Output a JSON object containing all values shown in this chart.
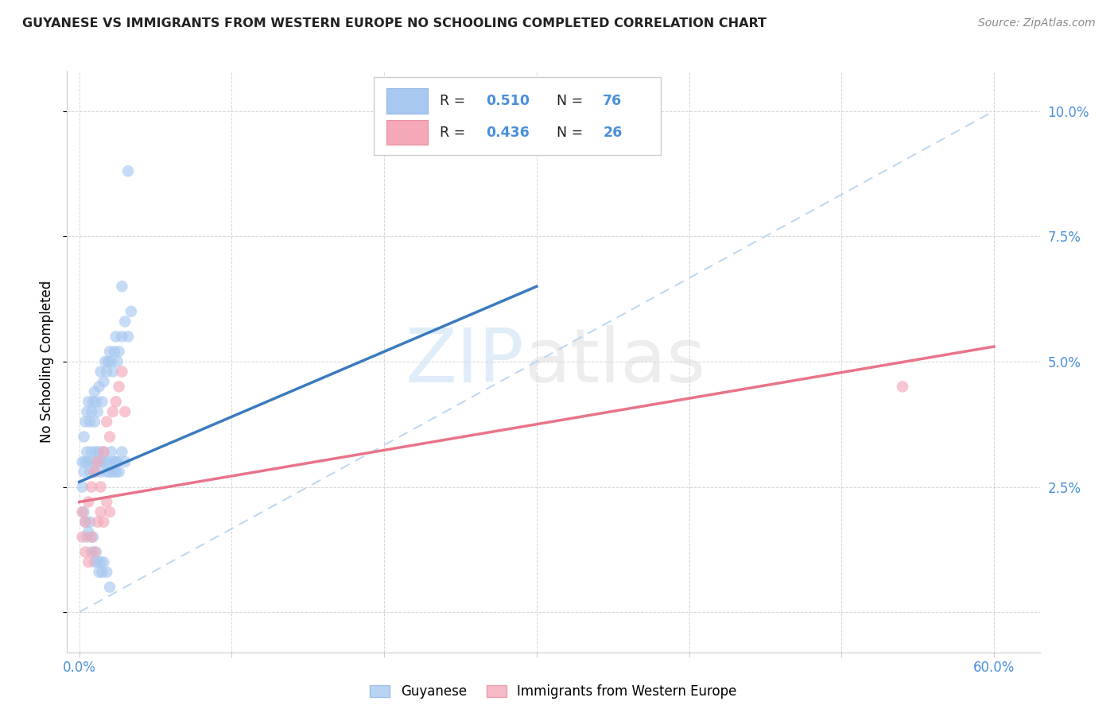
{
  "title": "GUYANESE VS IMMIGRANTS FROM WESTERN EUROPE NO SCHOOLING COMPLETED CORRELATION CHART",
  "source": "Source: ZipAtlas.com",
  "ylabel": "No Schooling Completed",
  "xlim": [
    -0.008,
    0.63
  ],
  "ylim": [
    -0.008,
    0.108
  ],
  "xticks": [
    0.0,
    0.1,
    0.2,
    0.3,
    0.4,
    0.5,
    0.6
  ],
  "xticklabels": [
    "0.0%",
    "",
    "",
    "",
    "",
    "",
    "60.0%"
  ],
  "yticks_right": [
    0.0,
    0.025,
    0.05,
    0.075,
    0.1
  ],
  "yticklabels_right": [
    "",
    "2.5%",
    "5.0%",
    "7.5%",
    "10.0%"
  ],
  "guyanese_color": "#a8c8f0",
  "immigrants_color": "#f4a8b8",
  "blue_line_color": "#3a7abf",
  "pink_line_color": "#e8748a",
  "diag_line_color": "#b8d4f0",
  "tick_color": "#4a90d9",
  "guyanese_x": [
    0.002,
    0.003,
    0.004,
    0.005,
    0.006,
    0.007,
    0.008,
    0.009,
    0.01,
    0.01,
    0.011,
    0.012,
    0.013,
    0.014,
    0.015,
    0.016,
    0.017,
    0.018,
    0.019,
    0.02,
    0.021,
    0.022,
    0.023,
    0.024,
    0.025,
    0.026,
    0.028,
    0.03,
    0.032,
    0.034,
    0.002,
    0.003,
    0.004,
    0.005,
    0.006,
    0.007,
    0.008,
    0.009,
    0.01,
    0.011,
    0.012,
    0.013,
    0.014,
    0.015,
    0.016,
    0.017,
    0.018,
    0.019,
    0.02,
    0.021,
    0.022,
    0.023,
    0.024,
    0.025,
    0.026,
    0.028,
    0.03,
    0.003,
    0.004,
    0.005,
    0.006,
    0.007,
    0.008,
    0.009,
    0.01,
    0.011,
    0.012,
    0.013,
    0.014,
    0.015,
    0.016,
    0.018,
    0.02,
    0.024,
    0.028,
    0.032
  ],
  "guyanese_y": [
    0.03,
    0.035,
    0.038,
    0.04,
    0.042,
    0.038,
    0.04,
    0.042,
    0.038,
    0.044,
    0.042,
    0.04,
    0.045,
    0.048,
    0.042,
    0.046,
    0.05,
    0.048,
    0.05,
    0.052,
    0.05,
    0.048,
    0.052,
    0.055,
    0.05,
    0.052,
    0.055,
    0.058,
    0.055,
    0.06,
    0.025,
    0.028,
    0.03,
    0.032,
    0.03,
    0.028,
    0.032,
    0.03,
    0.028,
    0.032,
    0.03,
    0.032,
    0.028,
    0.03,
    0.032,
    0.03,
    0.028,
    0.03,
    0.028,
    0.032,
    0.028,
    0.03,
    0.028,
    0.03,
    0.028,
    0.032,
    0.03,
    0.02,
    0.018,
    0.015,
    0.016,
    0.018,
    0.012,
    0.015,
    0.01,
    0.012,
    0.01,
    0.008,
    0.01,
    0.008,
    0.01,
    0.008,
    0.005,
    0.03,
    0.065,
    0.088
  ],
  "immigrants_x": [
    0.002,
    0.004,
    0.006,
    0.008,
    0.01,
    0.012,
    0.014,
    0.016,
    0.018,
    0.02,
    0.022,
    0.024,
    0.026,
    0.028,
    0.03,
    0.002,
    0.004,
    0.006,
    0.008,
    0.01,
    0.012,
    0.014,
    0.016,
    0.018,
    0.02,
    0.54
  ],
  "immigrants_y": [
    0.02,
    0.018,
    0.022,
    0.025,
    0.028,
    0.03,
    0.025,
    0.032,
    0.038,
    0.035,
    0.04,
    0.042,
    0.045,
    0.048,
    0.04,
    0.015,
    0.012,
    0.01,
    0.015,
    0.012,
    0.018,
    0.02,
    0.018,
    0.022,
    0.02,
    0.045
  ],
  "blue_regline": [
    0.0,
    0.3,
    0.026,
    0.065
  ],
  "pink_regline": [
    0.0,
    0.6,
    0.022,
    0.053
  ],
  "diag_line": [
    0.0,
    0.6,
    0.0,
    0.1
  ]
}
